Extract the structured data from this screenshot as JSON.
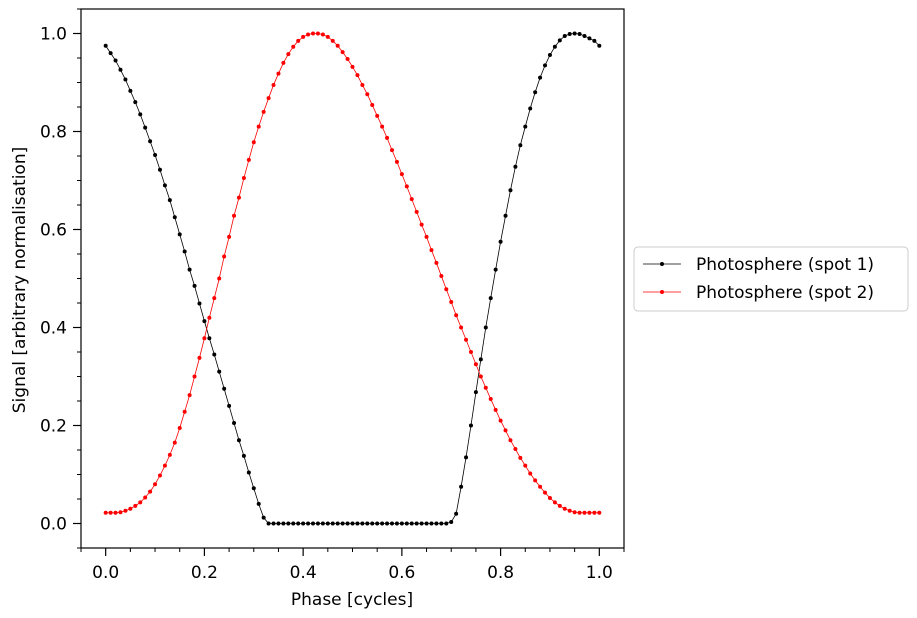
{
  "chart_data": {
    "type": "line",
    "xlabel": "Phase [cycles]",
    "ylabel": "Signal [arbitrary normalisation]",
    "xlim": [
      -0.05,
      1.05
    ],
    "ylim": [
      -0.05,
      1.05
    ],
    "x_ticks": [
      "0.0",
      "0.2",
      "0.4",
      "0.6",
      "0.8",
      "1.0"
    ],
    "y_ticks": [
      "0.0",
      "0.2",
      "0.4",
      "0.6",
      "0.8",
      "1.0"
    ],
    "grid": false,
    "legend_position": "outside-right",
    "series": [
      {
        "name": "Photosphere (spot 1)",
        "color": "#000000",
        "x": [
          0.0,
          0.01,
          0.02,
          0.03,
          0.04,
          0.05,
          0.06,
          0.07,
          0.08,
          0.09,
          0.1,
          0.11,
          0.12,
          0.13,
          0.14,
          0.15,
          0.16,
          0.17,
          0.18,
          0.19,
          0.2,
          0.21,
          0.22,
          0.23,
          0.24,
          0.25,
          0.26,
          0.27,
          0.28,
          0.29,
          0.3,
          0.31,
          0.32,
          0.33,
          0.34,
          0.35,
          0.36,
          0.37,
          0.38,
          0.39,
          0.4,
          0.41,
          0.42,
          0.43,
          0.44,
          0.45,
          0.46,
          0.47,
          0.48,
          0.49,
          0.5,
          0.51,
          0.52,
          0.53,
          0.54,
          0.55,
          0.56,
          0.57,
          0.58,
          0.59,
          0.6,
          0.61,
          0.62,
          0.63,
          0.64,
          0.65,
          0.66,
          0.67,
          0.68,
          0.69,
          0.7,
          0.71,
          0.72,
          0.73,
          0.74,
          0.75,
          0.76,
          0.77,
          0.78,
          0.79,
          0.8,
          0.81,
          0.82,
          0.83,
          0.84,
          0.85,
          0.86,
          0.87,
          0.88,
          0.89,
          0.9,
          0.91,
          0.92,
          0.93,
          0.94,
          0.95,
          0.96,
          0.97,
          0.98,
          0.99,
          1.0
        ],
        "values": [
          0.975,
          0.96,
          0.945,
          0.926,
          0.906,
          0.883,
          0.86,
          0.835,
          0.808,
          0.78,
          0.752,
          0.722,
          0.69,
          0.66,
          0.625,
          0.59,
          0.555,
          0.518,
          0.485,
          0.449,
          0.413,
          0.378,
          0.345,
          0.31,
          0.275,
          0.24,
          0.205,
          0.17,
          0.138,
          0.104,
          0.072,
          0.04,
          0.012,
          0.0,
          0.0,
          0.0,
          0.0,
          0.0,
          0.0,
          0.0,
          0.0,
          0.0,
          0.0,
          0.0,
          0.0,
          0.0,
          0.0,
          0.0,
          0.0,
          0.0,
          0.0,
          0.0,
          0.0,
          0.0,
          0.0,
          0.0,
          0.0,
          0.0,
          0.0,
          0.0,
          0.0,
          0.0,
          0.0,
          0.0,
          0.0,
          0.0,
          0.0,
          0.0,
          0.0,
          0.0,
          0.003,
          0.02,
          0.075,
          0.135,
          0.2,
          0.268,
          0.335,
          0.4,
          0.46,
          0.518,
          0.575,
          0.628,
          0.68,
          0.728,
          0.772,
          0.81,
          0.847,
          0.88,
          0.91,
          0.935,
          0.956,
          0.973,
          0.986,
          0.995,
          0.999,
          1.0,
          0.999,
          0.995,
          0.99,
          0.985,
          0.975
        ]
      },
      {
        "name": "Photosphere (spot 2)",
        "color": "#ff0000",
        "x": [
          0.0,
          0.01,
          0.02,
          0.03,
          0.04,
          0.05,
          0.06,
          0.07,
          0.08,
          0.09,
          0.1,
          0.11,
          0.12,
          0.13,
          0.14,
          0.15,
          0.16,
          0.17,
          0.18,
          0.19,
          0.2,
          0.21,
          0.22,
          0.23,
          0.24,
          0.25,
          0.26,
          0.27,
          0.28,
          0.29,
          0.3,
          0.31,
          0.32,
          0.33,
          0.34,
          0.35,
          0.36,
          0.37,
          0.38,
          0.39,
          0.4,
          0.41,
          0.42,
          0.43,
          0.44,
          0.45,
          0.46,
          0.47,
          0.48,
          0.49,
          0.5,
          0.51,
          0.52,
          0.53,
          0.54,
          0.55,
          0.56,
          0.57,
          0.58,
          0.59,
          0.6,
          0.61,
          0.62,
          0.63,
          0.64,
          0.65,
          0.66,
          0.67,
          0.68,
          0.69,
          0.7,
          0.71,
          0.72,
          0.73,
          0.74,
          0.75,
          0.76,
          0.77,
          0.78,
          0.79,
          0.8,
          0.81,
          0.82,
          0.83,
          0.84,
          0.85,
          0.86,
          0.87,
          0.88,
          0.89,
          0.9,
          0.91,
          0.92,
          0.93,
          0.94,
          0.95,
          0.96,
          0.97,
          0.98,
          0.99,
          1.0
        ],
        "values": [
          0.022,
          0.022,
          0.022,
          0.023,
          0.026,
          0.03,
          0.036,
          0.043,
          0.053,
          0.065,
          0.08,
          0.098,
          0.118,
          0.14,
          0.165,
          0.195,
          0.228,
          0.262,
          0.3,
          0.338,
          0.378,
          0.42,
          0.46,
          0.5,
          0.545,
          0.585,
          0.628,
          0.665,
          0.705,
          0.742,
          0.778,
          0.81,
          0.84,
          0.868,
          0.895,
          0.918,
          0.94,
          0.958,
          0.973,
          0.985,
          0.993,
          0.998,
          1.0,
          1.0,
          0.998,
          0.993,
          0.985,
          0.975,
          0.962,
          0.948,
          0.932,
          0.915,
          0.895,
          0.876,
          0.854,
          0.832,
          0.81,
          0.787,
          0.762,
          0.738,
          0.713,
          0.688,
          0.662,
          0.636,
          0.61,
          0.585,
          0.558,
          0.532,
          0.505,
          0.478,
          0.452,
          0.425,
          0.4,
          0.375,
          0.35,
          0.325,
          0.3,
          0.277,
          0.254,
          0.232,
          0.21,
          0.19,
          0.17,
          0.152,
          0.134,
          0.118,
          0.102,
          0.088,
          0.075,
          0.063,
          0.052,
          0.043,
          0.036,
          0.03,
          0.026,
          0.023,
          0.022,
          0.022,
          0.022,
          0.022,
          0.022
        ]
      }
    ]
  }
}
